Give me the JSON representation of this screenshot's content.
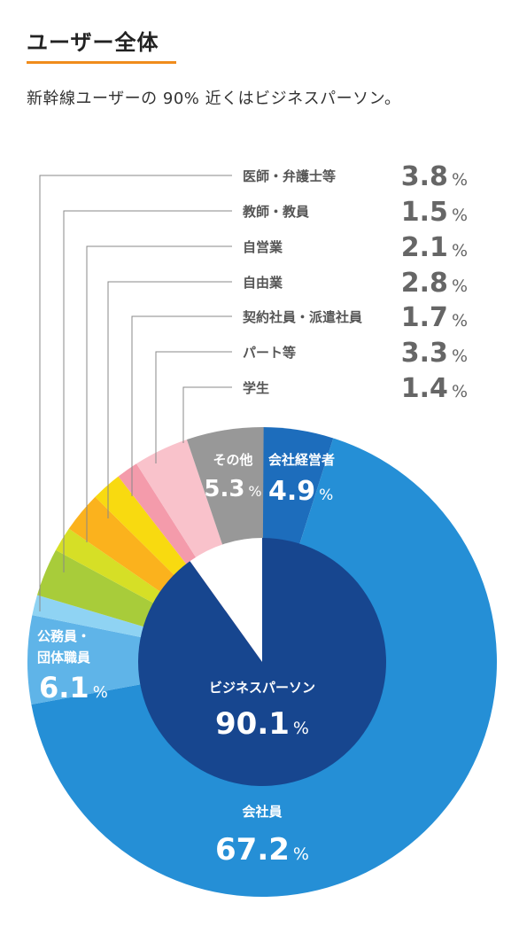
{
  "header": {
    "title": "ユーザー全体",
    "subtitle": "新幹線ユーザーの 90% 近くはビジネスパーソン。"
  },
  "colors": {
    "accent_underline": "#f08c1c"
  },
  "chart_data": {
    "type": "pie",
    "variant": "nested-donut",
    "percent_sign": "%",
    "inner": [
      {
        "label": "ビジネスパーソン",
        "value": "90.1",
        "color": "#17468f"
      }
    ],
    "outer": [
      {
        "label": "会社経営者",
        "value": "4.9",
        "color": "#1d6dbc"
      },
      {
        "label": "会社員",
        "value": "67.2",
        "color": "#258fd6"
      },
      {
        "label": "公務員・",
        "label2": "団体職員",
        "value": "6.1",
        "color": "#5fb4e8"
      },
      {
        "label": "学生",
        "value": "1.4",
        "color": "#8fd3f3"
      },
      {
        "label": "パート等",
        "value": "3.3",
        "color": "#a8cc3a"
      },
      {
        "label": "契約社員・派遣社員",
        "value": "1.7",
        "color": "#d6df26"
      },
      {
        "label": "自由業",
        "value": "2.8",
        "color": "#fbb21d"
      },
      {
        "label": "自営業",
        "value": "2.1",
        "color": "#f8da10"
      },
      {
        "label": "教師・教員",
        "value": "1.5",
        "color": "#f49bab"
      },
      {
        "label": "医師・弁護士等",
        "value": "3.8",
        "color": "#f9c2cb"
      },
      {
        "label": "その他",
        "value": "5.3",
        "color": "#989898"
      }
    ]
  }
}
